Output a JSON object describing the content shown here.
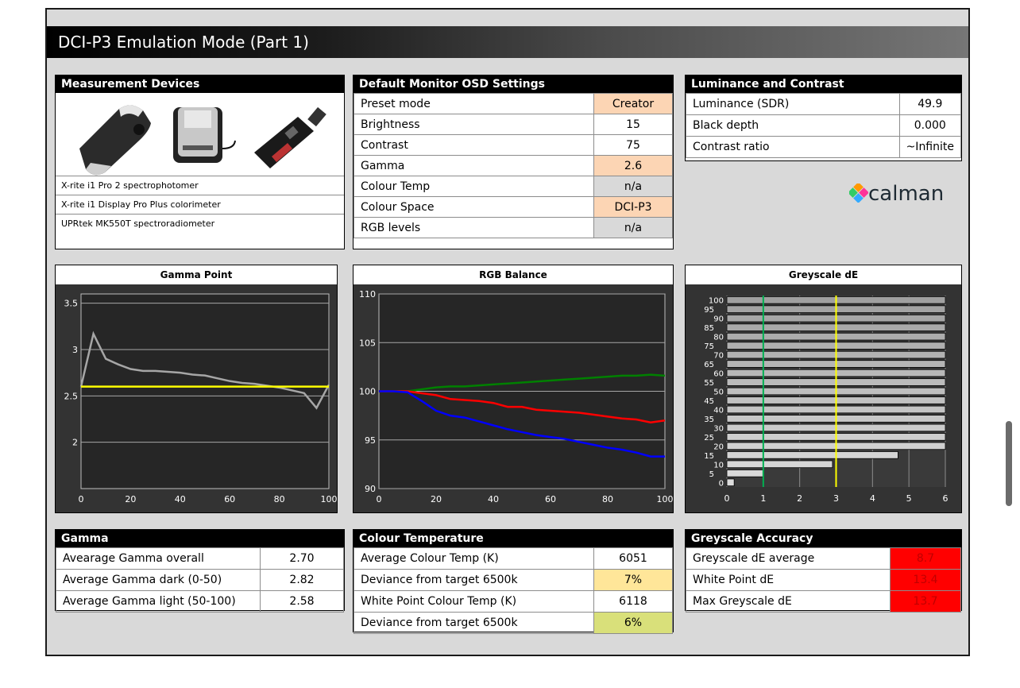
{
  "title": "DCI-P3 Emulation Mode (Part 1)",
  "devices": {
    "heading": "Measurement Devices",
    "items": [
      "X-rite i1 Pro 2 spectrophotomer",
      "X-rite i1 Display Pro Plus colorimeter",
      "UPRtek MK550T spectroradiometer"
    ]
  },
  "osd": {
    "heading": "Default Monitor OSD Settings",
    "rows": [
      {
        "label": "Preset mode",
        "value": "Creator",
        "bg": "#fcd5b4"
      },
      {
        "label": "Brightness",
        "value": "15",
        "bg": "#ffffff"
      },
      {
        "label": "Contrast",
        "value": "75",
        "bg": "#ffffff"
      },
      {
        "label": "Gamma",
        "value": "2.6",
        "bg": "#fcd5b4"
      },
      {
        "label": "Colour Temp",
        "value": "n/a",
        "bg": "#d9d9d9"
      },
      {
        "label": "Colour Space",
        "value": "DCI-P3",
        "bg": "#fcd5b4"
      },
      {
        "label": "RGB levels",
        "value": "n/a",
        "bg": "#d9d9d9"
      }
    ]
  },
  "luminance": {
    "heading": "Luminance and Contrast",
    "rows": [
      {
        "label": "Luminance (SDR)",
        "value": "49.9"
      },
      {
        "label": "Black depth",
        "value": "0.000"
      },
      {
        "label": "Contrast ratio",
        "value": "~Infinite"
      }
    ]
  },
  "logo_text": "calman",
  "gamma": {
    "heading": "Gamma",
    "rows": [
      {
        "label": "Avearage Gamma overall",
        "value": "2.70"
      },
      {
        "label": "Average Gamma dark (0-50)",
        "value": "2.82"
      },
      {
        "label": "Average Gamma light (50-100)",
        "value": "2.58"
      }
    ]
  },
  "colour_temp": {
    "heading": "Colour Temperature",
    "rows": [
      {
        "label": "Average Colour Temp (K)",
        "value": "6051",
        "bg": "#ffffff"
      },
      {
        "label": "Deviance from target 6500k",
        "value": "7%",
        "bg": "#ffe699"
      },
      {
        "label": "White Point Colour Temp (K)",
        "value": "6118",
        "bg": "#ffffff"
      },
      {
        "label": "Deviance from target 6500k",
        "value": "6%",
        "bg": "#d9e07a"
      }
    ]
  },
  "greyscale_acc": {
    "heading": "Greyscale Accuracy",
    "rows": [
      {
        "label": "Greyscale dE average",
        "value": "8.7"
      },
      {
        "label": "White Point dE",
        "value": "13.4"
      },
      {
        "label": "Max Greyscale dE",
        "value": "13.7"
      }
    ],
    "value_bg": "#ff0000",
    "value_color": "#c00000"
  },
  "chart_data": [
    {
      "type": "line",
      "title": "Gamma Point",
      "xlim": [
        0,
        100
      ],
      "ylim": [
        1.5,
        3.6
      ],
      "xticks": [
        0,
        20,
        40,
        60,
        80,
        100
      ],
      "yticks": [
        2,
        2.5,
        3,
        3.5
      ],
      "ytick_labels": [
        "2",
        "2.5",
        "3",
        "3.5"
      ],
      "series": [
        {
          "color": "#a6a6a6",
          "x": [
            0,
            5,
            10,
            15,
            20,
            25,
            30,
            35,
            40,
            45,
            50,
            55,
            60,
            65,
            70,
            75,
            80,
            85,
            90,
            95,
            100
          ],
          "y": [
            2.6,
            3.17,
            2.9,
            2.84,
            2.79,
            2.77,
            2.77,
            2.76,
            2.75,
            2.73,
            2.72,
            2.69,
            2.66,
            2.64,
            2.63,
            2.61,
            2.59,
            2.56,
            2.53,
            2.37,
            2.62
          ]
        },
        {
          "color": "#ffff00",
          "x": [
            0,
            100
          ],
          "y": [
            2.6,
            2.6
          ]
        }
      ],
      "grid": true
    },
    {
      "type": "line",
      "title": "RGB Balance",
      "xlim": [
        0,
        100
      ],
      "ylim": [
        90,
        110
      ],
      "xticks": [
        0,
        20,
        40,
        60,
        80,
        100
      ],
      "yticks": [
        90,
        95,
        100,
        105,
        110
      ],
      "ytick_labels": [
        "90",
        "95",
        "100",
        "105",
        "110"
      ],
      "series": [
        {
          "color": "#008000",
          "x": [
            0,
            5,
            10,
            15,
            20,
            25,
            30,
            35,
            40,
            45,
            50,
            55,
            60,
            65,
            70,
            75,
            80,
            85,
            90,
            95,
            100
          ],
          "y": [
            100,
            100,
            100,
            100.2,
            100.4,
            100.5,
            100.5,
            100.6,
            100.7,
            100.8,
            100.9,
            101,
            101.1,
            101.2,
            101.3,
            101.4,
            101.5,
            101.6,
            101.6,
            101.7,
            101.6
          ]
        },
        {
          "color": "#ff0000",
          "x": [
            0,
            5,
            10,
            15,
            20,
            25,
            30,
            35,
            40,
            45,
            50,
            55,
            60,
            65,
            70,
            75,
            80,
            85,
            90,
            95,
            100
          ],
          "y": [
            100,
            100,
            100,
            99.8,
            99.6,
            99.2,
            99.1,
            99,
            98.8,
            98.4,
            98.4,
            98.1,
            98,
            97.9,
            97.8,
            97.6,
            97.4,
            97.2,
            97.1,
            96.8,
            97
          ]
        },
        {
          "color": "#0000ff",
          "x": [
            0,
            5,
            10,
            15,
            20,
            25,
            30,
            35,
            40,
            45,
            50,
            55,
            60,
            65,
            70,
            75,
            80,
            85,
            90,
            95,
            100
          ],
          "y": [
            100,
            100,
            99.9,
            99,
            98,
            97.5,
            97.3,
            96.9,
            96.5,
            96.1,
            95.8,
            95.5,
            95.3,
            95.1,
            94.8,
            94.5,
            94.2,
            94,
            93.7,
            93.3,
            93.3
          ]
        }
      ],
      "grid": true
    },
    {
      "type": "bar",
      "orientation": "horizontal",
      "title": "Greyscale dE",
      "categories": [
        0,
        5,
        10,
        15,
        20,
        25,
        30,
        35,
        40,
        45,
        50,
        55,
        60,
        65,
        70,
        75,
        80,
        85,
        90,
        95,
        100
      ],
      "values": [
        0.2,
        1.0,
        2.9,
        4.7,
        6.0,
        6.0,
        6.0,
        6.0,
        6.0,
        6.0,
        6.0,
        6.0,
        6.0,
        6.0,
        6.0,
        6.0,
        6.0,
        6.0,
        6.0,
        6.0,
        6.0
      ],
      "xlim": [
        0,
        6
      ],
      "xticks": [
        0,
        1,
        2,
        3,
        4,
        5,
        6
      ],
      "ytick_labels": [
        "0",
        "5",
        "10",
        "15",
        "20",
        "25",
        "30",
        "35",
        "40",
        "45",
        "50",
        "55",
        "60",
        "65",
        "70",
        "75",
        "80",
        "85",
        "90",
        "95",
        "100"
      ],
      "reference_lines": [
        {
          "x": 1,
          "color": "#00b050"
        },
        {
          "x": 3,
          "color": "#ffff00"
        }
      ],
      "grid": true
    }
  ]
}
